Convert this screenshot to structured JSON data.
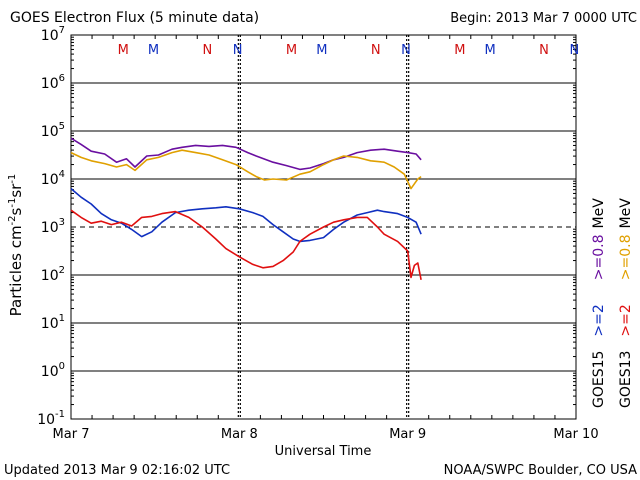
{
  "chart_data": {
    "type": "line",
    "title": "GOES Electron Flux (5 minute data)",
    "begin_label": "Begin: 2013 Mar 7 0000 UTC",
    "xlabel": "Universal Time",
    "ylabel_parts": [
      "Particles cm",
      "-2",
      "s",
      "-1",
      "sr",
      "-1"
    ],
    "x_unit": "days since 2013 Mar 7 0000 UTC",
    "xlim": [
      0,
      3
    ],
    "ylim_log10": [
      -1,
      7
    ],
    "y_ticks": [
      {
        "base": "10",
        "exp": "7",
        "logv": 7
      },
      {
        "base": "10",
        "exp": "6",
        "logv": 6
      },
      {
        "base": "10",
        "exp": "5",
        "logv": 5
      },
      {
        "base": "10",
        "exp": "4",
        "logv": 4
      },
      {
        "base": "10",
        "exp": "3",
        "logv": 3
      },
      {
        "base": "10",
        "exp": "2",
        "logv": 2
      },
      {
        "base": "10",
        "exp": "1",
        "logv": 1
      },
      {
        "base": "10",
        "exp": "0",
        "logv": 0
      },
      {
        "base": "10",
        "exp": "-1",
        "logv": -1
      }
    ],
    "x_ticks": [
      {
        "label": "Mar 7",
        "x": 0
      },
      {
        "label": "Mar 8",
        "x": 1
      },
      {
        "label": "Mar 9",
        "x": 2
      },
      {
        "label": "Mar 10",
        "x": 3
      }
    ],
    "threshold_log10": 3,
    "midnight_markers": [
      {
        "label": "M",
        "x": 0.31,
        "color": "#d01010"
      },
      {
        "label": "M",
        "x": 0.49,
        "color": "#1030c0"
      },
      {
        "label": "N",
        "x": 0.81,
        "color": "#d01010"
      },
      {
        "label": "N",
        "x": 0.99,
        "color": "#1030c0"
      },
      {
        "label": "M",
        "x": 1.31,
        "color": "#d01010"
      },
      {
        "label": "M",
        "x": 1.49,
        "color": "#1030c0"
      },
      {
        "label": "N",
        "x": 1.81,
        "color": "#d01010"
      },
      {
        "label": "N",
        "x": 1.99,
        "color": "#1030c0"
      },
      {
        "label": "M",
        "x": 2.31,
        "color": "#d01010"
      },
      {
        "label": "M",
        "x": 2.49,
        "color": "#1030c0"
      },
      {
        "label": "N",
        "x": 2.81,
        "color": "#d01010"
      },
      {
        "label": "N",
        "x": 2.99,
        "color": "#1030c0"
      }
    ],
    "series": [
      {
        "name": "GOES15 >=0.8 MeV",
        "color": "#6a0fa0",
        "x": [
          0.0,
          0.06,
          0.12,
          0.2,
          0.27,
          0.33,
          0.38,
          0.45,
          0.52,
          0.6,
          0.66,
          0.74,
          0.82,
          0.9,
          0.98,
          1.05,
          1.1,
          1.2,
          1.28,
          1.36,
          1.42,
          1.5,
          1.56,
          1.62,
          1.7,
          1.78,
          1.86,
          1.94,
          2.0,
          2.05,
          2.08
        ],
        "log10": [
          4.85,
          4.72,
          4.58,
          4.52,
          4.35,
          4.42,
          4.25,
          4.48,
          4.5,
          4.62,
          4.66,
          4.7,
          4.68,
          4.7,
          4.66,
          4.55,
          4.48,
          4.35,
          4.28,
          4.2,
          4.23,
          4.32,
          4.4,
          4.45,
          4.55,
          4.6,
          4.62,
          4.58,
          4.55,
          4.52,
          4.4
        ]
      },
      {
        "name": "GOES13 >=0.8 MeV",
        "color": "#e0a000",
        "x": [
          0.0,
          0.06,
          0.12,
          0.2,
          0.27,
          0.33,
          0.38,
          0.45,
          0.52,
          0.6,
          0.66,
          0.74,
          0.82,
          0.9,
          0.98,
          1.05,
          1.1,
          1.15,
          1.2,
          1.28,
          1.36,
          1.42,
          1.5,
          1.56,
          1.62,
          1.7,
          1.78,
          1.86,
          1.92,
          1.98,
          2.02,
          2.04,
          2.06,
          2.08
        ],
        "log10": [
          4.55,
          4.45,
          4.38,
          4.32,
          4.25,
          4.3,
          4.18,
          4.4,
          4.45,
          4.55,
          4.6,
          4.55,
          4.5,
          4.4,
          4.3,
          4.15,
          4.05,
          3.98,
          4.0,
          3.98,
          4.1,
          4.15,
          4.3,
          4.4,
          4.48,
          4.45,
          4.38,
          4.35,
          4.25,
          4.1,
          3.8,
          3.9,
          4.0,
          4.05
        ]
      },
      {
        "name": "GOES15 >=2 MeV",
        "color": "#1030c0",
        "x": [
          0.0,
          0.06,
          0.12,
          0.18,
          0.24,
          0.3,
          0.36,
          0.42,
          0.48,
          0.54,
          0.62,
          0.7,
          0.78,
          0.86,
          0.92,
          1.0,
          1.08,
          1.14,
          1.2,
          1.26,
          1.32,
          1.36,
          1.42,
          1.5,
          1.56,
          1.62,
          1.7,
          1.76,
          1.82,
          1.86,
          1.94,
          2.0,
          2.05,
          2.08
        ],
        "log10": [
          3.8,
          3.62,
          3.48,
          3.28,
          3.15,
          3.08,
          2.95,
          2.8,
          2.9,
          3.1,
          3.3,
          3.35,
          3.38,
          3.4,
          3.42,
          3.38,
          3.3,
          3.22,
          3.05,
          2.9,
          2.75,
          2.7,
          2.72,
          2.78,
          2.95,
          3.1,
          3.25,
          3.3,
          3.35,
          3.32,
          3.28,
          3.2,
          3.1,
          2.85
        ]
      },
      {
        "name": "GOES13 >=2 MeV",
        "color": "#e01010",
        "x": [
          0.0,
          0.06,
          0.12,
          0.18,
          0.24,
          0.3,
          0.36,
          0.42,
          0.48,
          0.54,
          0.62,
          0.7,
          0.78,
          0.86,
          0.92,
          1.0,
          1.08,
          1.14,
          1.2,
          1.26,
          1.32,
          1.36,
          1.42,
          1.5,
          1.56,
          1.62,
          1.7,
          1.76,
          1.82,
          1.86,
          1.94,
          2.0,
          2.02,
          2.04,
          2.06,
          2.08
        ],
        "log10": [
          3.35,
          3.2,
          3.08,
          3.12,
          3.05,
          3.1,
          3.02,
          3.2,
          3.22,
          3.28,
          3.32,
          3.2,
          3.0,
          2.75,
          2.55,
          2.38,
          2.22,
          2.15,
          2.18,
          2.3,
          2.48,
          2.7,
          2.85,
          3.0,
          3.1,
          3.15,
          3.2,
          3.2,
          3.0,
          2.85,
          2.7,
          2.5,
          1.95,
          2.2,
          2.25,
          1.9
        ]
      }
    ],
    "legend": {
      "satellites": [
        {
          "text": "GOES15",
          "color": "#000000"
        },
        {
          "text": "GOES13",
          "color": "#000000"
        }
      ],
      "energy_2": [
        {
          "text": ">=2",
          "color": "#1030c0"
        },
        {
          "text": ">=2",
          "color": "#e01010"
        }
      ],
      "energy_08": [
        {
          "text": ">=0.8",
          "color": "#6a0fa0"
        },
        {
          "text": ">=0.8",
          "color": "#e0a000"
        }
      ],
      "unit": "MeV"
    }
  },
  "footer": {
    "updated": "Updated 2013 Mar  9 02:16:02 UTC",
    "credit": "NOAA/SWPC Boulder, CO USA"
  }
}
